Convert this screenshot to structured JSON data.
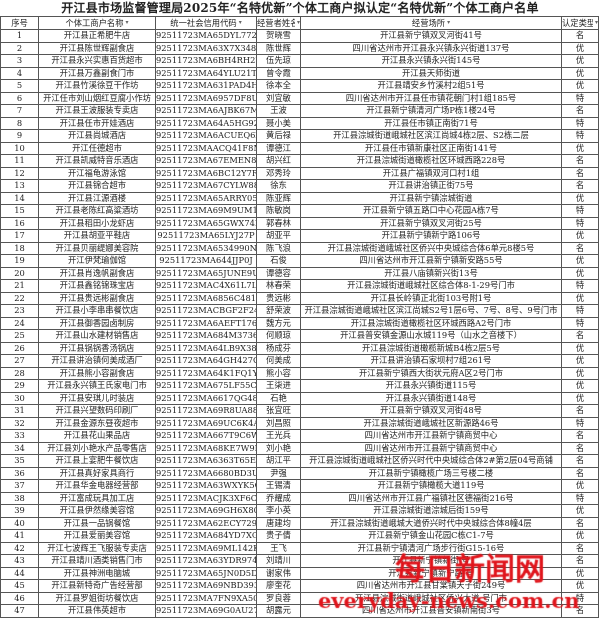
{
  "title": "开江县市场监督管理局2025年“名特优新”个体工商户拟认定“名特优新”个体工商户名单",
  "headers": [
    "序号",
    "个体工商户名称",
    "统一社会信用代码",
    "经营者姓名",
    "经营场所",
    "认定类型"
  ],
  "rows": [
    [
      "1",
      "开江县正希肥牛店",
      "92511723MA65DYL772",
      "贺晓雪",
      "开江县新宁镇双叉河街41号",
      "名"
    ],
    [
      "2",
      "开江县陈世辉副食店",
      "92511723MA63X7X348",
      "陈世辉",
      "四川省达州市开江县永兴镇永兴街道137号",
      "优"
    ],
    [
      "3",
      "开江县永兴实惠百货超市",
      "92511723MA6BH4RH2U",
      "伍先琼",
      "开江县永兴镇永兴街145号",
      "优"
    ],
    [
      "4",
      "开江县万鑫副食门市",
      "92511723MA64YLU21T",
      "曾令霞",
      "开江县天师街道",
      "优"
    ],
    [
      "5",
      "开江县竹溪徐豆干作坊",
      "92511723MA631PAD4H",
      "徐本全",
      "开江县靖安乡竹溪村2组51号",
      "优"
    ],
    [
      "6",
      "开江任市刘山烟红豆腐小作坊",
      "92511723MA6957DF8U",
      "刘宜敏",
      "四川省达州市开江县任市镇花朝门村1组185号",
      "特"
    ],
    [
      "7",
      "开江县王波服装专卖店",
      "92511723MA6AJBK67M",
      "王波",
      "开江县新宁镇清河广场P栋1楼24号",
      "名"
    ],
    [
      "8",
      "开江县任市开娃酒店",
      "92511723MA64A5HG92",
      "聂小美",
      "开江县任市镇正南街71号",
      "特"
    ],
    [
      "9",
      "开江县尚城酒店",
      "92511723MA6ACUEQ6X",
      "黄后禄",
      "开江县淙城街道峨城社区滨江尚城4栋2层、S2栋二层",
      "特"
    ],
    [
      "10",
      "开江任德超市",
      "92511723MAACQ41F8M",
      "谭德江",
      "开江县任市镇新康社区正南街141号",
      "优"
    ],
    [
      "11",
      "开江县凯威特音乐酒店",
      "92511723MA67EMEN8E",
      "胡兴红",
      "开江县淙城街道橄榄社区环城西路228号",
      "名"
    ],
    [
      "12",
      "开江福龟游泳馆",
      "92511723MA6BC12Y7R",
      "邓秀玲",
      "开江县广福镇双河口村1组",
      "名"
    ],
    [
      "13",
      "开江县锦合超市",
      "92511723MA67CYLW88",
      "徐东",
      "开江县讲治镇正街75号",
      "名"
    ],
    [
      "14",
      "开江县江源酒楼",
      "92511723MA65ARRY05",
      "陈亚辉",
      "开江县新宁镇淙城街道",
      "优"
    ],
    [
      "15",
      "开江县老陈红高粱酒坊",
      "92511723MA69M9UM16",
      "陈敏岗",
      "开江县新宁镇五路口中心花园A栋7号",
      "特"
    ],
    [
      "16",
      "开江县稻田小龙虾店",
      "92511723MA65GWX74L",
      "郭春林",
      "开江县新宁镇双叉河街25号",
      "特"
    ],
    [
      "17",
      "开江县胡亚平鞋店",
      "92511723MA65LYJ27P",
      "胡亚平",
      "开江县新宁镇新宁路106号",
      "优"
    ],
    [
      "18",
      "开江县贝丽缇娜美容院",
      "92511723MA6534990N",
      "陈飞浪",
      "开江县淙城街道峨城社区侨兴中央城综合体6单元8楼5号",
      "名"
    ],
    [
      "19",
      "开江伊梵瑜伽馆",
      "92511723MA644JJP0J",
      "石俊",
      "四川省达州市开江县新宁镇新安路55号",
      "优"
    ],
    [
      "20",
      "开江县肖逸帆副食店",
      "92511723MA65JUNE9U",
      "谭德容",
      "开江县八庙镇新兴街13号",
      "优"
    ],
    [
      "21",
      "开江县鑫铭锦珠宝店",
      "92511723MAC4X61L7L",
      "林春荣",
      "开江县淙城街道峨城社区综合体8-1-29号门市",
      "特"
    ],
    [
      "22",
      "开江县贵远彬副食店",
      "92511723MA6856C481",
      "贵远彬",
      "开江县长岭镇正北街103号附1号",
      "优"
    ],
    [
      "23",
      "开江县小李串串餐饮店",
      "92511723MACBGF2F24",
      "舒荣波",
      "开江县淙城街道峨城社区滨江尚城S2号1层6号、7号、8号、9号门市",
      "特"
    ],
    [
      "24",
      "开江县御香园卤制房",
      "92511723MA6AEFT176",
      "魏方元",
      "开江县淙城街道橄榄社区环城西路A2号门市",
      "特"
    ],
    [
      "25",
      "开江县山水建材销售店",
      "92511723MA684M3736",
      "何顺琼",
      "开江县普安镇金源山水城119号（山水之音楼下）",
      "名"
    ],
    [
      "26",
      "开江县锅锅香汤锅店",
      "92511723MA64LB9X38",
      "杨成芬",
      "开江县淙城街道橄榄新城B4栋2层5号",
      "优"
    ],
    [
      "27",
      "开江县讲治镇何美成酒厂",
      "92511723MA64GH427Q",
      "何美成",
      "开江县讲治镇石家坝村7组261号",
      "优"
    ],
    [
      "28",
      "开江县熊小容副食店",
      "92511723MA64K1FQ1Y",
      "熊小容",
      "开江县新宁镇西大街状元府A区2号门市",
      "优"
    ],
    [
      "29",
      "开江县永兴镇王氏家电门市",
      "92511723MA675LF55C",
      "王柒进",
      "开江县永兴镇街道115号",
      "优"
    ],
    [
      "30",
      "开江县安琪儿时装店",
      "92511723MA6617QG48",
      "石艳",
      "开江县永兴镇街道148号",
      "优"
    ],
    [
      "31",
      "开江县兴望数码印刷厂",
      "92511723MA69R8UA88",
      "张宜旺",
      "开江县新宁镇双叉河街48号",
      "名"
    ],
    [
      "32",
      "开江县金源东昼夜超市",
      "92511723MA69UC6K4A",
      "刘昌照",
      "开江县淙城街道峨城社区新源路46号",
      "特"
    ],
    [
      "33",
      "开江县花山果品店",
      "92511723MA667T9C6W",
      "王光兵",
      "四川省达州市开江县新宁镇商贸中心",
      "名"
    ],
    [
      "34",
      "开江县刘小艳水产品零售店",
      "92511723MA68KE7W9N",
      "刘小艳",
      "四川省达州市开江县新宁镇商贸中心",
      "名"
    ],
    [
      "35",
      "开江县上宴肥牛餐饮店",
      "92511723MA6363T65E",
      "胡江平",
      "开江县淙城街道峨城社区侨兴时代中央城综合体2#第2层04号商铺",
      "名"
    ],
    [
      "36",
      "开江县真好家具商行",
      "92511723MA6680BD3U",
      "尹强",
      "开江县新宁镇橄榄广场三号楼二楼",
      "名"
    ],
    [
      "37",
      "开江县华金电器经营部",
      "92511723MA63WXYK5Q",
      "王锡清",
      "开江县新宁镇橄榄大道119号",
      "优"
    ],
    [
      "38",
      "开江富成玩具加工店",
      "92511723MACJK3XF6C",
      "乔耀成",
      "四川省达州市开江县广福镇社区德福街216号",
      "特"
    ],
    [
      "39",
      "开江县伊然缘美容馆",
      "92511723MA69GH6X80",
      "李小英",
      "开江县淙城街道淙城后街159号",
      "优"
    ],
    [
      "40",
      "开江县一品锅餐馆",
      "92511723MA62ECY729",
      "唐建均",
      "开江县淙城街道峨城大道侨兴时代中央城综合体8幢4层",
      "名"
    ],
    [
      "41",
      "开江县爱丽美容馆",
      "92511723MA684YD7XG",
      "贵子倩",
      "开江县新宁镇金山花园C栋C1-7号",
      "优"
    ],
    [
      "42",
      "开江七波辉王飞服装专卖店",
      "92511723MA69ML142K",
      "王飞",
      "开江县新宁镇清河广场步行街G15-16号",
      "名"
    ],
    [
      "43",
      "开江县靖川酒类销售门市",
      "92511723MA63YDR974",
      "刘靖川",
      "开江县新宁镇新街 号",
      "名"
    ],
    [
      "44",
      "开江县神洲电脑城",
      "92511723MA65JN0D5D",
      "谢家伟",
      "开江县新宁镇新宁路 号",
      "优"
    ],
    [
      "45",
      "开江县新特奇广告经营部",
      "92511723MA69NBD393",
      "廖奎花",
      "四川省达州市开江县甘棠镇天子街249号",
      "优"
    ],
    [
      "46",
      "开江县罗姐街坊餐饮店",
      "92511723MA7FN9XA50",
      "罗良蓉",
      "开江县淙城街道峨城社区侨兴大道 号门市",
      "特"
    ],
    [
      "47",
      "开江县伟英超市",
      "92511723MA69G0AU27",
      "胡露元",
      "四川省达州市开江县普安镇新南街3号",
      "名"
    ]
  ],
  "watermark": {
    "cn": "每日新闻网",
    "url": "everyday-news.com.cn",
    "color": "#e0141b"
  }
}
